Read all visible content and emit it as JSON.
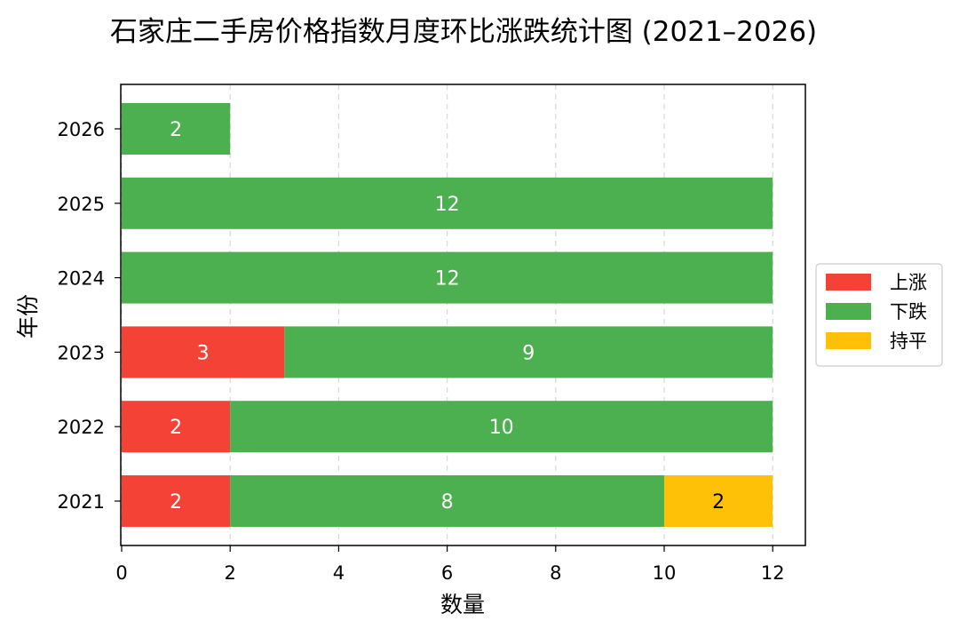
{
  "chart_data": {
    "type": "bar",
    "orientation": "horizontal",
    "stacked": true,
    "title": "石家庄二手房价格指数月度环比涨跌统计图 (2021–2026)",
    "xlabel": "数量",
    "ylabel": "年份",
    "categories": [
      "2021",
      "2022",
      "2023",
      "2024",
      "2025",
      "2026"
    ],
    "series": [
      {
        "name": "上涨",
        "color": "#f44336",
        "label_color": "#ffffff",
        "values": [
          2,
          2,
          3,
          0,
          0,
          0
        ]
      },
      {
        "name": "下跌",
        "color": "#4caf50",
        "label_color": "#ffffff",
        "values": [
          8,
          10,
          9,
          12,
          12,
          2
        ]
      },
      {
        "name": "持平",
        "color": "#ffc107",
        "label_color": "#000000",
        "values": [
          2,
          0,
          0,
          0,
          0,
          0
        ]
      }
    ],
    "xlim": [
      0,
      12.6
    ],
    "xticks": [
      0,
      2,
      4,
      6,
      8,
      10,
      12
    ],
    "grid": "x-dashed",
    "legend_position": "right"
  }
}
